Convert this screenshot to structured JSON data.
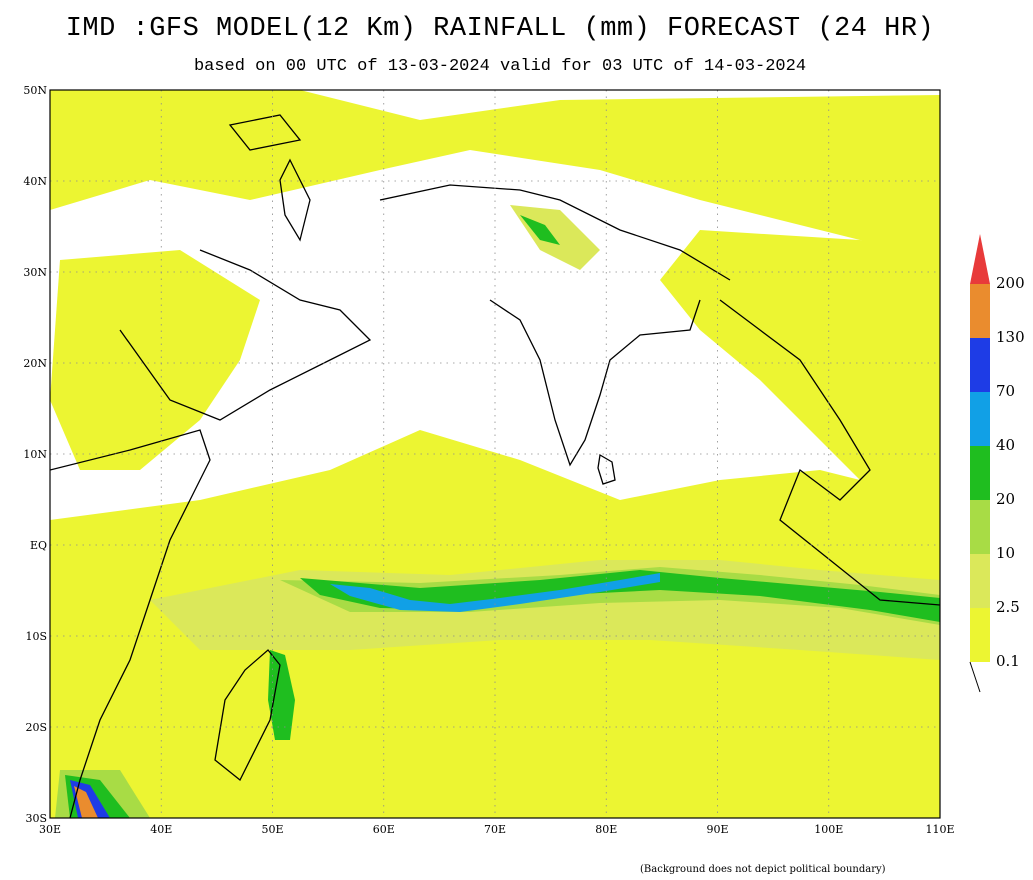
{
  "header": {
    "title": "IMD :GFS MODEL(12 Km) RAINFALL (mm) FORECAST (24 HR)",
    "subtitle": "based on 00 UTC of 13-03-2024 valid for 03 UTC of 14-03-2024"
  },
  "map": {
    "lon_range": [
      30,
      110
    ],
    "lat_range": [
      -30,
      50
    ],
    "lon_ticks": [
      "30E",
      "40E",
      "50E",
      "60E",
      "70E",
      "80E",
      "90E",
      "100E",
      "110E"
    ],
    "lat_ticks": [
      "50N",
      "40N",
      "30N",
      "20N",
      "10N",
      "EQ",
      "10S",
      "20S",
      "30S"
    ]
  },
  "legend": {
    "levels": [
      "0.1",
      "2.5",
      "10",
      "20",
      "40",
      "70",
      "130",
      "200"
    ],
    "colors": [
      "#ecf532",
      "#dbe85a",
      "#a8dc45",
      "#1fbe1f",
      "#11a0e6",
      "#1e3ce6",
      "#ea8c2e",
      "#e83a3a"
    ]
  },
  "footer": {
    "note": "(Background does not depict political boundary)"
  }
}
